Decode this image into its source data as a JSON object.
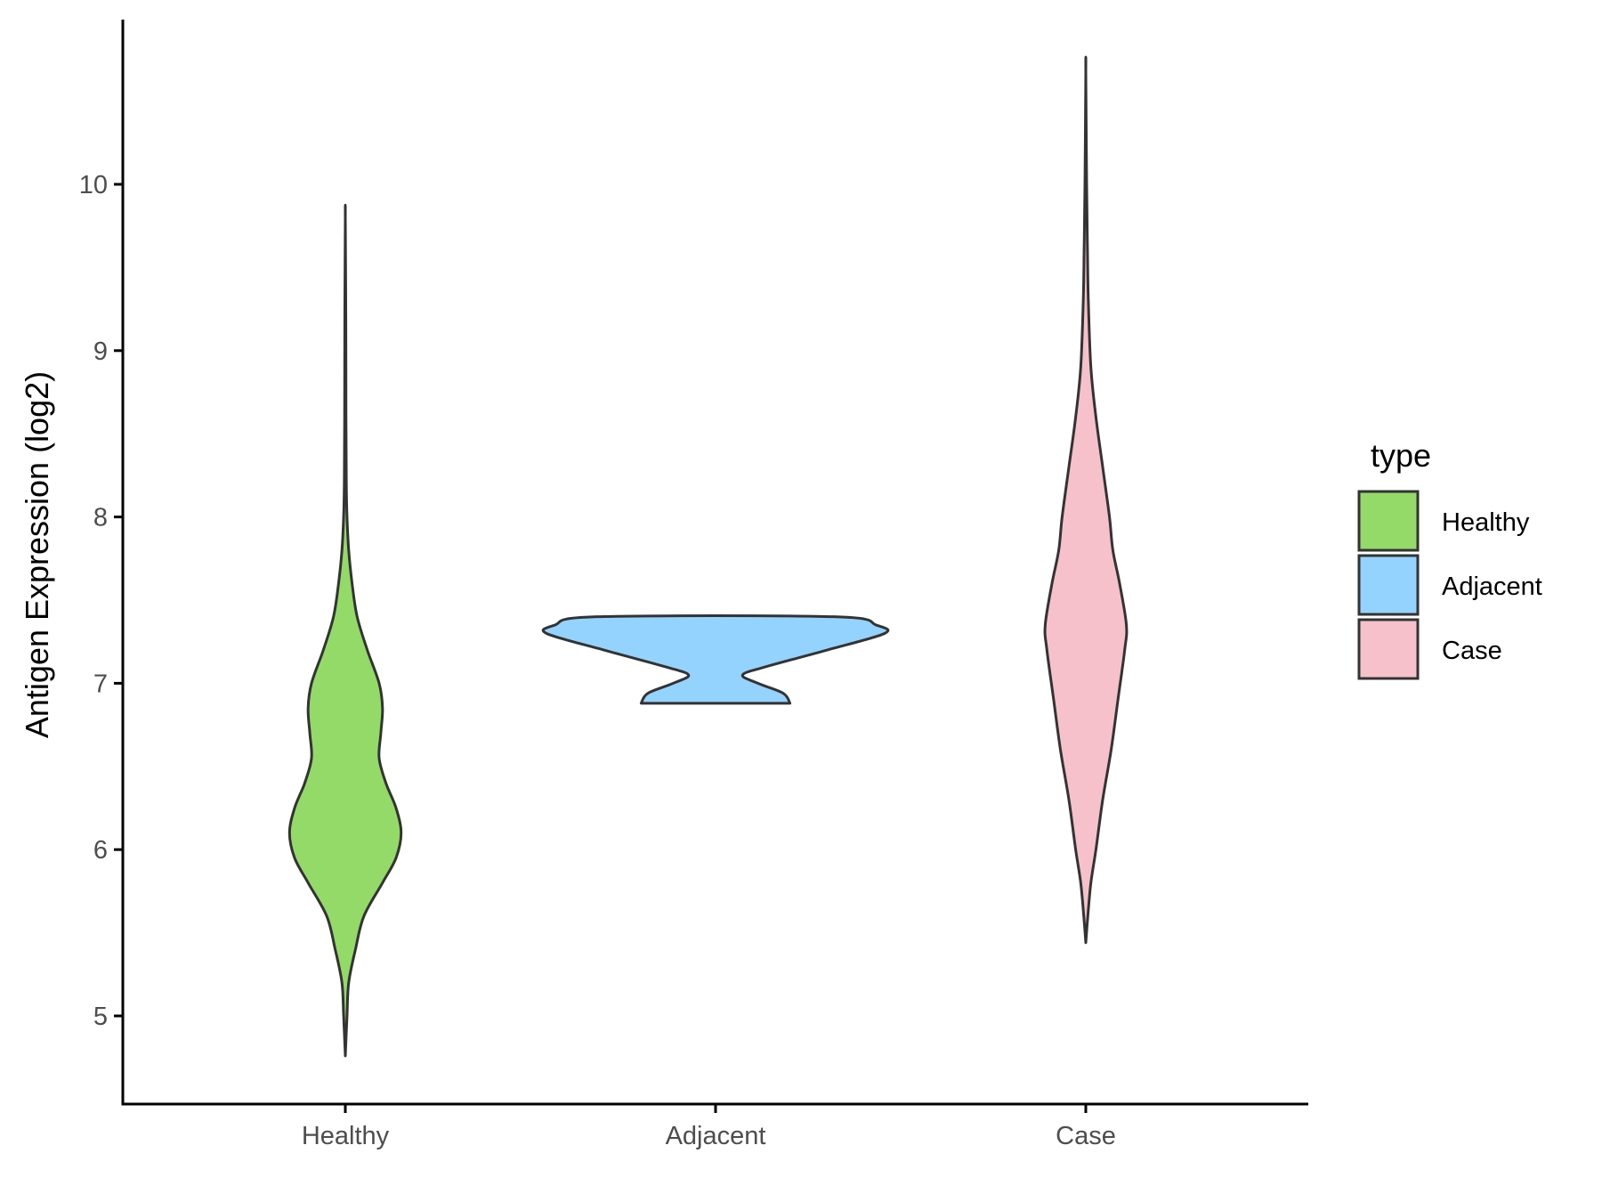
{
  "chart_data": {
    "type": "violin",
    "title": "",
    "xlabel": "",
    "ylabel": "Antigen Expression (log2)",
    "ylim": [
      4.45,
      11.0
    ],
    "yticks": [
      5,
      6,
      7,
      8,
      9,
      10
    ],
    "categories": [
      "Healthy",
      "Adjacent",
      "Case"
    ],
    "grid": false,
    "legend": {
      "title": "type",
      "position": "right",
      "entries": [
        "Healthy",
        "Adjacent",
        "Case"
      ]
    },
    "series": [
      {
        "name": "Healthy",
        "color": "#93DA68",
        "min": 4.76,
        "max": 9.8,
        "profile": [
          [
            4.76,
            0.0
          ],
          [
            5.0,
            0.01
          ],
          [
            5.2,
            0.02
          ],
          [
            5.4,
            0.06
          ],
          [
            5.6,
            0.11
          ],
          [
            5.8,
            0.22
          ],
          [
            5.95,
            0.3
          ],
          [
            6.1,
            0.33
          ],
          [
            6.25,
            0.3
          ],
          [
            6.4,
            0.24
          ],
          [
            6.55,
            0.2
          ],
          [
            6.7,
            0.21
          ],
          [
            6.85,
            0.22
          ],
          [
            7.0,
            0.2
          ],
          [
            7.2,
            0.13
          ],
          [
            7.4,
            0.07
          ],
          [
            7.6,
            0.04
          ],
          [
            7.8,
            0.02
          ],
          [
            8.0,
            0.01
          ],
          [
            8.2,
            0.006
          ],
          [
            8.6,
            0.004
          ],
          [
            9.2,
            0.003
          ],
          [
            9.8,
            0.0
          ]
        ]
      },
      {
        "name": "Adjacent",
        "color": "#94D3FE",
        "min": 6.88,
        "max": 7.4,
        "profile": [
          [
            6.88,
            0.44
          ],
          [
            6.94,
            0.4
          ],
          [
            7.0,
            0.25
          ],
          [
            7.05,
            0.16
          ],
          [
            7.1,
            0.3
          ],
          [
            7.2,
            0.66
          ],
          [
            7.3,
            1.0
          ],
          [
            7.35,
            0.95
          ],
          [
            7.4,
            0.7
          ]
        ]
      },
      {
        "name": "Case",
        "color": "#F7C1CB",
        "min": 5.44,
        "max": 10.68,
        "profile": [
          [
            5.44,
            0.0
          ],
          [
            5.6,
            0.012
          ],
          [
            5.8,
            0.03
          ],
          [
            6.0,
            0.06
          ],
          [
            6.3,
            0.1
          ],
          [
            6.6,
            0.15
          ],
          [
            6.9,
            0.19
          ],
          [
            7.2,
            0.23
          ],
          [
            7.35,
            0.24
          ],
          [
            7.6,
            0.2
          ],
          [
            7.8,
            0.16
          ],
          [
            8.0,
            0.14
          ],
          [
            8.3,
            0.1
          ],
          [
            8.6,
            0.06
          ],
          [
            8.9,
            0.03
          ],
          [
            9.3,
            0.015
          ],
          [
            9.6,
            0.01
          ],
          [
            10.0,
            0.005
          ],
          [
            10.68,
            0.0
          ]
        ]
      }
    ]
  }
}
